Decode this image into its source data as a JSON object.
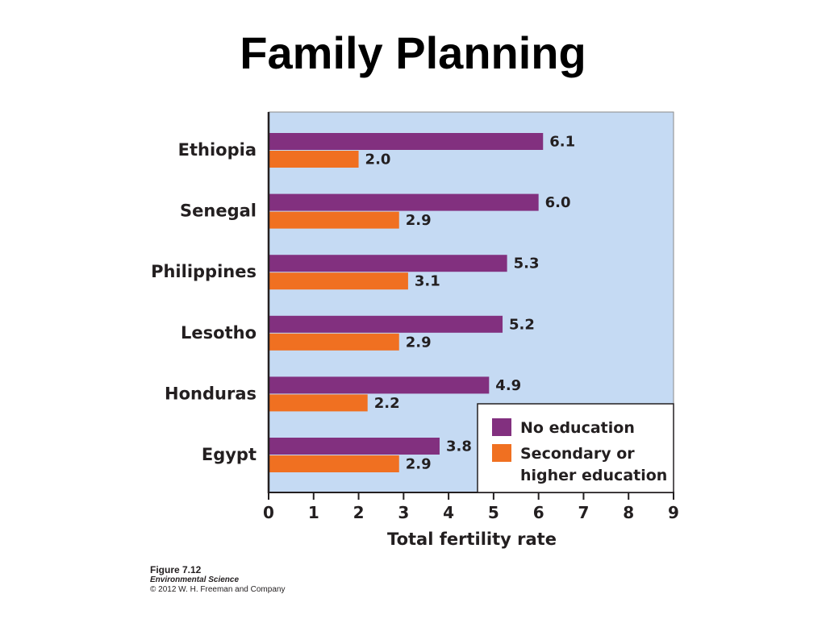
{
  "title": "Family Planning",
  "chart_data": {
    "type": "bar",
    "orientation": "horizontal",
    "categories": [
      "Ethiopia",
      "Senegal",
      "Philippines",
      "Lesotho",
      "Honduras",
      "Egypt"
    ],
    "series": [
      {
        "name": "No education",
        "values": [
          6.1,
          6.0,
          5.3,
          5.2,
          4.9,
          3.8
        ],
        "color": "#82307f",
        "value_labels": [
          "6.1",
          "6.0",
          "5.3",
          "5.2",
          "4.9",
          "3.8"
        ]
      },
      {
        "name": "Secondary or higher education",
        "values": [
          2.0,
          2.9,
          3.1,
          2.9,
          2.2,
          2.9
        ],
        "color": "#f07021",
        "value_labels": [
          "2.0",
          "2.9",
          "3.1",
          "2.9",
          "2.2",
          "2.9"
        ]
      }
    ],
    "legend_lines": [
      [
        "No education"
      ],
      [
        "Secondary or",
        "higher education"
      ]
    ],
    "xlabel": "Total fertility rate",
    "ylabel": "",
    "xlim": [
      0,
      9
    ],
    "xticks": [
      "0",
      "1",
      "2",
      "3",
      "4",
      "5",
      "6",
      "7",
      "8",
      "9"
    ],
    "grid": false,
    "legend_position": "bottom-right",
    "plot_background": "#c5daf3"
  },
  "credit": {
    "figure": "Figure 7.12",
    "book": "Environmental Science",
    "copyright": "© 2012 W. H. Freeman and Company"
  }
}
